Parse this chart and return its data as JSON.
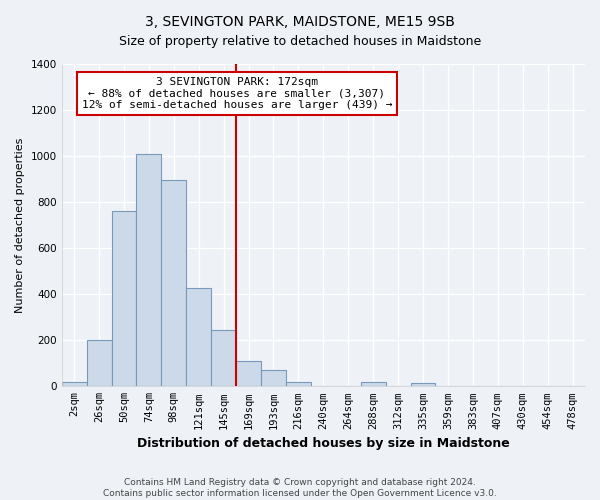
{
  "title": "3, SEVINGTON PARK, MAIDSTONE, ME15 9SB",
  "subtitle": "Size of property relative to detached houses in Maidstone",
  "xlabel": "Distribution of detached houses by size in Maidstone",
  "ylabel": "Number of detached properties",
  "bar_labels": [
    "2sqm",
    "26sqm",
    "50sqm",
    "74sqm",
    "98sqm",
    "121sqm",
    "145sqm",
    "169sqm",
    "193sqm",
    "216sqm",
    "240sqm",
    "264sqm",
    "288sqm",
    "312sqm",
    "335sqm",
    "359sqm",
    "383sqm",
    "407sqm",
    "430sqm",
    "454sqm",
    "478sqm"
  ],
  "bar_values": [
    20,
    200,
    760,
    1010,
    895,
    425,
    245,
    110,
    70,
    20,
    0,
    0,
    18,
    0,
    15,
    0,
    0,
    0,
    0,
    0,
    0
  ],
  "bar_color": "#ccd9e8",
  "bar_edge_color": "#7799bb",
  "annotation_line1": "3 SEVINGTON PARK: 172sqm",
  "annotation_line2": "← 88% of detached houses are smaller (3,307)",
  "annotation_line3": "12% of semi-detached houses are larger (439) →",
  "annotation_box_color": "#ffffff",
  "annotation_box_edge_color": "#cc0000",
  "vline_color": "#cc0000",
  "vline_x_index": 7,
  "ylim": [
    0,
    1400
  ],
  "yticks": [
    0,
    200,
    400,
    600,
    800,
    1000,
    1200,
    1400
  ],
  "footer_line1": "Contains HM Land Registry data © Crown copyright and database right 2024.",
  "footer_line2": "Contains public sector information licensed under the Open Government Licence v3.0.",
  "background_color": "#eef2f7",
  "plot_bg_color": "#eef2f7",
  "grid_color": "#ffffff",
  "title_fontsize": 10,
  "subtitle_fontsize": 9,
  "xlabel_fontsize": 9,
  "ylabel_fontsize": 8,
  "tick_fontsize": 7.5,
  "annotation_fontsize": 8,
  "footer_fontsize": 6.5
}
